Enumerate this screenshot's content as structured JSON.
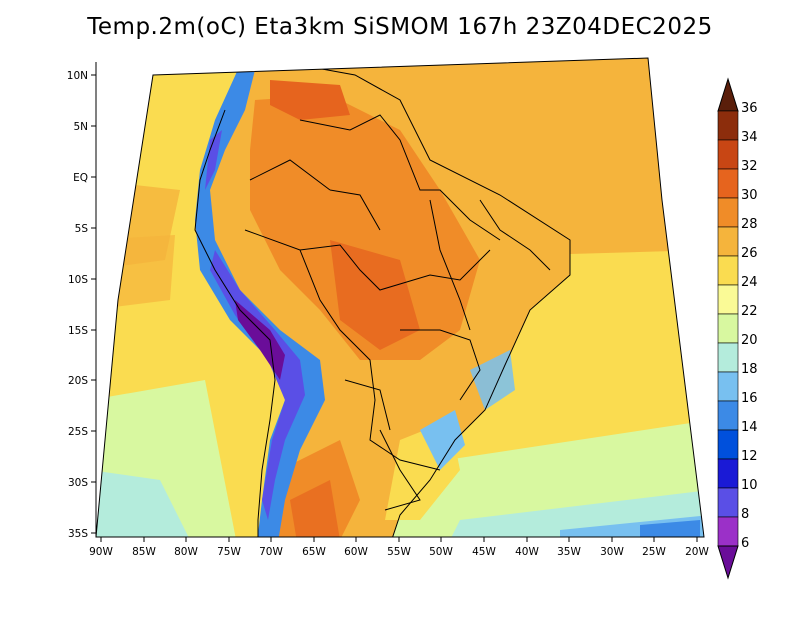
{
  "title": "Temp.2m(oC) Eta3km SiSMOM 167h 23Z04DEC2025",
  "lat_labels": [
    "10N",
    "5N",
    "EQ",
    "5S",
    "10S",
    "15S",
    "20S",
    "25S",
    "30S",
    "35S"
  ],
  "lon_labels": [
    "90W",
    "85W",
    "80W",
    "75W",
    "70W",
    "65W",
    "60W",
    "55W",
    "50W",
    "45W",
    "40W",
    "35W",
    "30W",
    "25W",
    "20W"
  ],
  "colorbar": {
    "labels": [
      "6",
      "8",
      "10",
      "12",
      "14",
      "16",
      "18",
      "20",
      "22",
      "24",
      "26",
      "28",
      "30",
      "32",
      "34",
      "36"
    ],
    "colors": [
      "#6a0d99",
      "#9b30c8",
      "#5a4fe6",
      "#1a1ad6",
      "#0050dc",
      "#3c8ae6",
      "#78c0f0",
      "#b4ecdc",
      "#d8f8a0",
      "#fafa96",
      "#fadc50",
      "#f5b43c",
      "#f08c28",
      "#e6641e",
      "#c84614",
      "#8c2d0c",
      "#5a1e0a"
    ]
  },
  "regions": [
    {
      "name": "ocean-pacific-cool",
      "color": "#fafa96"
    },
    {
      "name": "ocean-atlantic-warm",
      "color": "#f5b43c"
    },
    {
      "name": "south-ocean-cool",
      "color": "#d8f8a0"
    },
    {
      "name": "continent-warm",
      "color": "#f08c28"
    },
    {
      "name": "andes-cold",
      "color": "#3c8ae6"
    }
  ]
}
